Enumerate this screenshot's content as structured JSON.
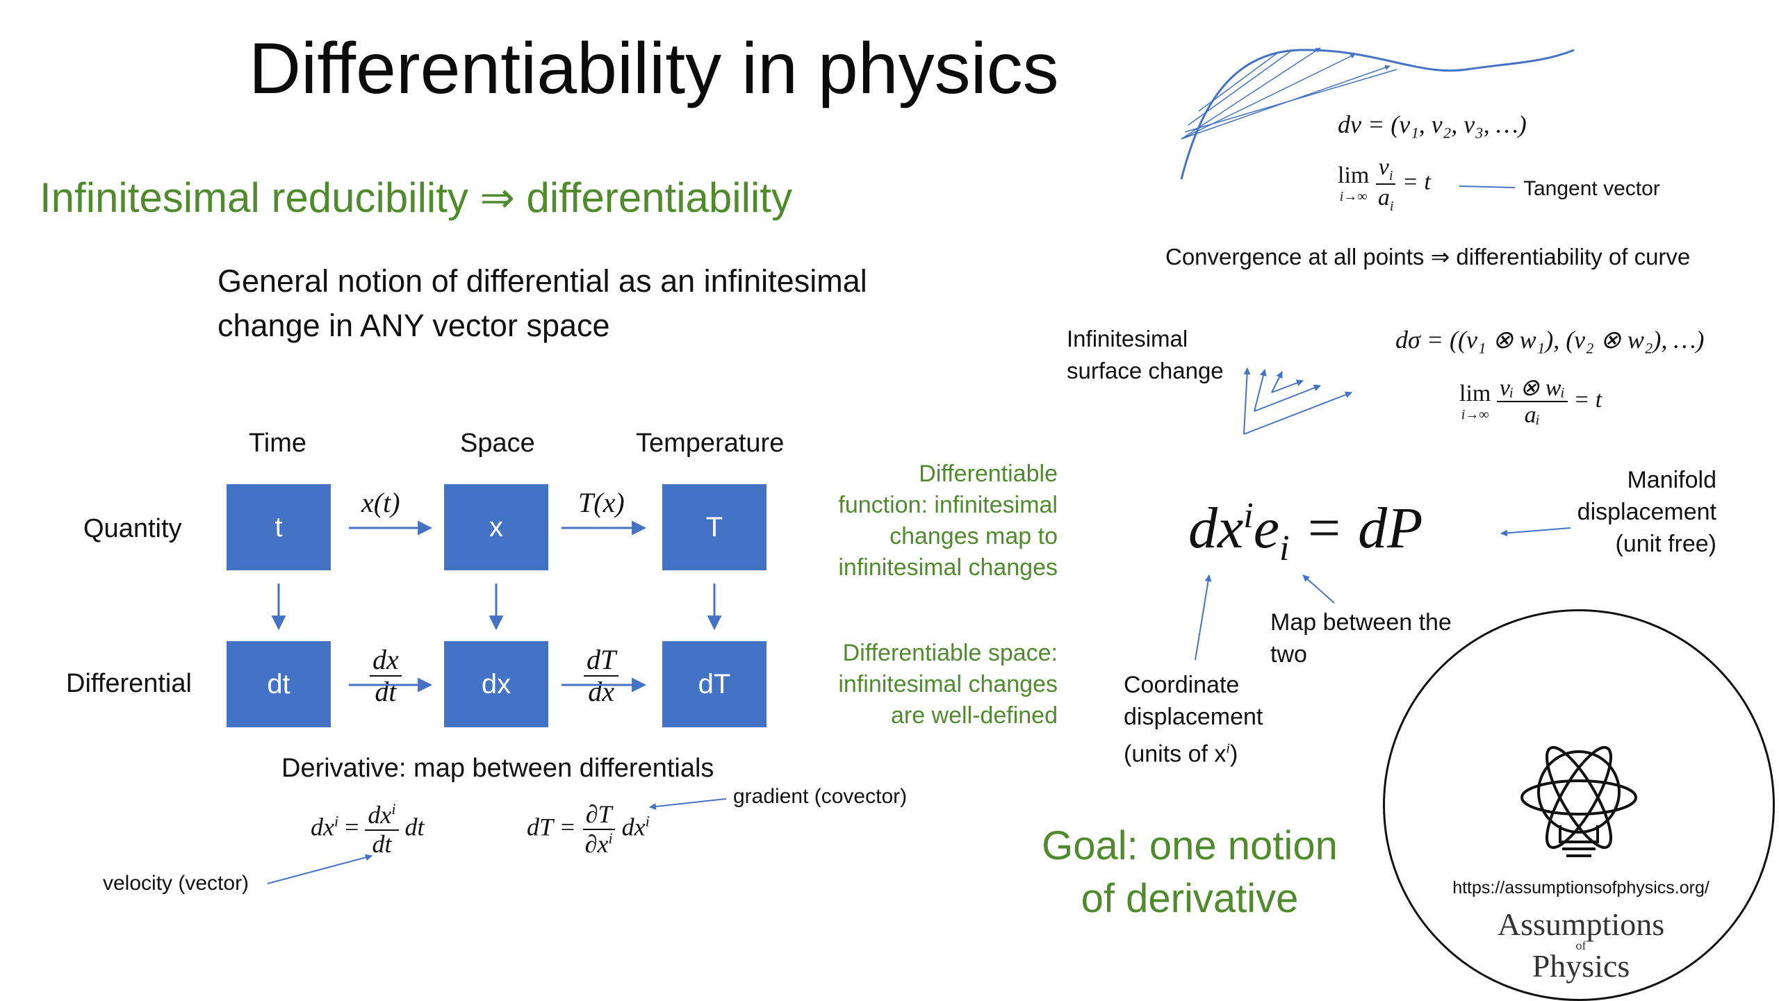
{
  "title": "Differentiability in physics",
  "subtitle": "Infinitesimal reducibility ⇒ differentiability",
  "general_notion": [
    "General notion of differential as an infinitesimal",
    "change in ANY vector space"
  ],
  "columns": {
    "time": "Time",
    "space": "Space",
    "temperature": "Temperature"
  },
  "rows": {
    "quantity": "Quantity",
    "differential": "Differential"
  },
  "boxes": {
    "t": "t",
    "x": "x",
    "T": "T",
    "dt": "dt",
    "dx": "dx",
    "dT": "dT"
  },
  "arrow_labels": {
    "x_of_t": "x(t)",
    "T_of_x": "T(x)",
    "dx_num": "dx",
    "dx_den": "dt",
    "dT_num": "dT",
    "dT_den": "dx"
  },
  "derivative_caption": "Derivative: map between differentials",
  "formulas": {
    "velocity_lhs": "dx",
    "velocity_sup": "i",
    "velocity_eq": "=",
    "velocity_num": "dx",
    "velocity_num_sup": "i",
    "velocity_den": "dt",
    "velocity_tail": "dt",
    "gradient_lhs": "dT =",
    "gradient_num": "∂T",
    "gradient_den": "∂x",
    "gradient_den_sup": "i",
    "gradient_tail": "dx",
    "gradient_tail_sup": "i"
  },
  "gradient_label": "gradient (covector)",
  "velocity_label": "velocity (vector)",
  "green_notes": {
    "differentiable_function": [
      "Differentiable",
      "function: infinitesimal",
      "changes map to",
      "infinitesimal changes"
    ],
    "differentiable_space": [
      "Differentiable space:",
      "infinitesimal changes",
      "are well-defined"
    ]
  },
  "curve_panel": {
    "dv": "dv = (v₁, v₂, v₃, …)",
    "lim": "lim",
    "lim_sub": "i→∞",
    "lim_num": "v",
    "lim_num_sub": "i",
    "lim_den": "a",
    "lim_den_sub": "i",
    "lim_eq": "= t",
    "tangent": "Tangent vector",
    "convergence": "Convergence at all points ⇒ differentiability of curve"
  },
  "surface_panel": {
    "label": [
      "Infinitesimal",
      "surface change"
    ],
    "dsigma": "dσ = ((v₁ ⊗ w₁), (v₂ ⊗ w₂), …)",
    "lim": "lim",
    "lim_sub": "i→∞",
    "lim_num": "vᵢ ⊗ wᵢ",
    "lim_den": "aᵢ",
    "lim_eq": "= t"
  },
  "main_equation": {
    "lhs": "dx",
    "sup": "i",
    "e": "e",
    "sub": "i",
    "rhs": "= dP"
  },
  "manifold_label": [
    "Manifold",
    "displacement",
    "(unit free)"
  ],
  "map_label": [
    "Map between the",
    "two"
  ],
  "coordinate_label": [
    "Coordinate",
    "displacement",
    "(units of x"
  ],
  "coordinate_sup": "i",
  "coordinate_close": ")",
  "goal": [
    "Goal: one notion",
    "of derivative"
  ],
  "logo": {
    "url": "https://assumptionsofphysics.org/",
    "line1": "Assumptions",
    "of": "of",
    "line2": "Physics"
  },
  "colors": {
    "box": "#4472c4",
    "green": "#4f8a2c",
    "arrow": "#4472c4"
  }
}
